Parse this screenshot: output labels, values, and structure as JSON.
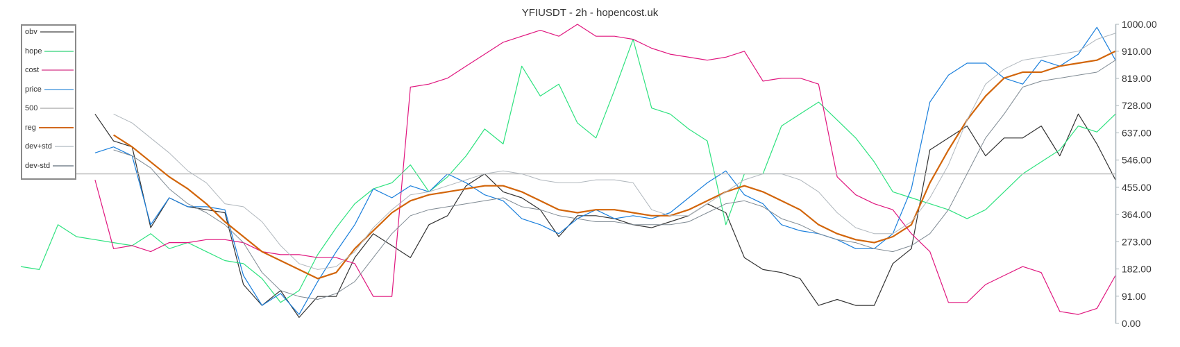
{
  "title": "YFIUSDT - 2h - hopencost.uk",
  "y_axis": {
    "ticks": [
      "1000.00",
      "910.00",
      "819.00",
      "728.00",
      "637.00",
      "546.00",
      "455.00",
      "364.00",
      "273.00",
      "182.00",
      "91.00",
      "0.00"
    ],
    "tick_values": [
      1000,
      910,
      819,
      728,
      637,
      546,
      455,
      364,
      273,
      182,
      91,
      0
    ]
  },
  "legend": [
    {
      "label": "obv",
      "color": "#888888"
    },
    {
      "label": "hope",
      "color": "#7de3ab"
    },
    {
      "label": "cost",
      "color": "#e47fb3"
    },
    {
      "label": "price",
      "color": "#82b9e8"
    },
    {
      "label": "500",
      "color": "#c8c8c8"
    },
    {
      "label": "reg",
      "color": "#d2691e"
    },
    {
      "label": "dev+std",
      "color": "#cdd3d8"
    },
    {
      "label": "dev-std",
      "color": "#9aa3ab"
    }
  ],
  "chart_data": {
    "type": "line",
    "title": "YFIUSDT - 2h - hopencost.uk",
    "xlabel": "",
    "ylabel": "",
    "ylim": [
      0,
      1000
    ],
    "y_ticks": [
      1000,
      910,
      819,
      728,
      637,
      546,
      455,
      364,
      273,
      182,
      91,
      0
    ],
    "reference_line": 500,
    "legend_position": "top-left",
    "x": [
      0,
      1,
      2,
      3,
      4,
      5,
      6,
      7,
      8,
      9,
      10,
      11,
      12,
      13,
      14,
      15,
      16,
      17,
      18,
      19,
      20,
      21,
      22,
      23,
      24,
      25,
      26,
      27,
      28,
      29,
      30,
      31,
      32,
      33,
      34,
      35,
      36,
      37,
      38,
      39,
      40,
      41,
      42,
      43,
      44,
      45,
      46,
      47,
      48,
      49,
      50,
      51,
      52,
      53,
      54,
      55,
      56,
      57,
      58,
      59
    ],
    "series": [
      {
        "name": "obv",
        "color": "#333333",
        "width": 1.2,
        "values": [
          null,
          null,
          null,
          null,
          700,
          610,
          590,
          320,
          420,
          390,
          380,
          370,
          130,
          60,
          110,
          20,
          90,
          90,
          220,
          300,
          260,
          220,
          330,
          360,
          460,
          500,
          440,
          420,
          380,
          290,
          360,
          360,
          350,
          330,
          320,
          340,
          360,
          400,
          370,
          220,
          180,
          170,
          150,
          60,
          80,
          60,
          60,
          200,
          250,
          580,
          620,
          660,
          560,
          620,
          620,
          660,
          560,
          700,
          600,
          480
        ]
      },
      {
        "name": "hope",
        "color": "#2ee27f",
        "width": 1.2,
        "values": [
          190,
          180,
          330,
          290,
          280,
          270,
          260,
          300,
          250,
          270,
          240,
          210,
          200,
          150,
          70,
          110,
          230,
          320,
          400,
          450,
          470,
          530,
          440,
          490,
          560,
          650,
          600,
          860,
          760,
          800,
          670,
          620,
          780,
          950,
          720,
          700,
          650,
          610,
          330,
          500,
          500,
          660,
          700,
          740,
          680,
          620,
          540,
          440,
          420,
          400,
          380,
          350,
          380,
          440,
          500,
          540,
          580,
          660,
          640,
          700
        ]
      },
      {
        "name": "cost",
        "color": "#e0177f",
        "width": 1.2,
        "values": [
          null,
          null,
          null,
          null,
          480,
          250,
          260,
          240,
          270,
          270,
          280,
          280,
          270,
          240,
          230,
          230,
          220,
          220,
          200,
          90,
          90,
          790,
          800,
          820,
          860,
          900,
          940,
          960,
          980,
          960,
          1000,
          960,
          960,
          950,
          920,
          900,
          890,
          880,
          890,
          910,
          810,
          820,
          820,
          800,
          490,
          430,
          400,
          380,
          300,
          240,
          70,
          70,
          130,
          160,
          190,
          170,
          40,
          30,
          50,
          160
        ]
      },
      {
        "name": "price",
        "color": "#1a7fdc",
        "width": 1.2,
        "values": [
          null,
          null,
          null,
          null,
          570,
          590,
          560,
          330,
          420,
          390,
          390,
          380,
          160,
          60,
          100,
          30,
          140,
          240,
          330,
          450,
          420,
          460,
          440,
          500,
          470,
          430,
          410,
          350,
          330,
          300,
          350,
          380,
          350,
          360,
          350,
          370,
          420,
          470,
          510,
          430,
          400,
          330,
          310,
          300,
          280,
          250,
          250,
          300,
          450,
          740,
          830,
          870,
          870,
          820,
          800,
          880,
          860,
          900,
          990,
          880
        ]
      },
      {
        "name": "500",
        "color": "#bdbdbd",
        "width": 1.5,
        "values": [
          500,
          500,
          500,
          500,
          500,
          500,
          500,
          500,
          500,
          500,
          500,
          500,
          500,
          500,
          500,
          500,
          500,
          500,
          500,
          500,
          500,
          500,
          500,
          500,
          500,
          500,
          500,
          500,
          500,
          500,
          500,
          500,
          500,
          500,
          500,
          500,
          500,
          500,
          500,
          500,
          500,
          500,
          500,
          500,
          500,
          500,
          500,
          500,
          500,
          500,
          500,
          500,
          500,
          500,
          500,
          500,
          500,
          500,
          500,
          500
        ]
      },
      {
        "name": "reg",
        "color": "#d2650a",
        "width": 2.2,
        "values": [
          null,
          null,
          null,
          null,
          null,
          630,
          590,
          540,
          490,
          450,
          400,
          340,
          290,
          240,
          210,
          180,
          150,
          170,
          250,
          310,
          370,
          410,
          430,
          440,
          450,
          460,
          460,
          440,
          410,
          380,
          370,
          380,
          380,
          370,
          360,
          360,
          380,
          410,
          440,
          460,
          440,
          410,
          380,
          330,
          300,
          280,
          270,
          290,
          330,
          470,
          580,
          680,
          760,
          820,
          840,
          840,
          860,
          870,
          880,
          910
        ]
      },
      {
        "name": "dev+std",
        "color": "#b0b7bd",
        "width": 1,
        "values": [
          null,
          null,
          null,
          null,
          null,
          700,
          670,
          620,
          570,
          510,
          470,
          400,
          390,
          340,
          260,
          200,
          180,
          190,
          240,
          320,
          380,
          430,
          440,
          460,
          480,
          500,
          510,
          500,
          480,
          470,
          470,
          480,
          480,
          470,
          380,
          360,
          360,
          400,
          440,
          480,
          500,
          500,
          480,
          440,
          370,
          320,
          300,
          300,
          340,
          420,
          530,
          680,
          800,
          850,
          880,
          890,
          900,
          910,
          950,
          970
        ]
      },
      {
        "name": "dev-std",
        "color": "#7f8a93",
        "width": 1,
        "values": [
          null,
          null,
          null,
          null,
          null,
          580,
          560,
          520,
          450,
          400,
          370,
          330,
          270,
          170,
          110,
          90,
          80,
          100,
          140,
          220,
          300,
          360,
          380,
          390,
          400,
          410,
          420,
          390,
          380,
          360,
          350,
          340,
          340,
          330,
          330,
          330,
          340,
          370,
          400,
          410,
          390,
          350,
          330,
          300,
          280,
          270,
          250,
          240,
          260,
          300,
          380,
          500,
          620,
          700,
          790,
          810,
          820,
          830,
          840,
          880
        ]
      }
    ]
  }
}
